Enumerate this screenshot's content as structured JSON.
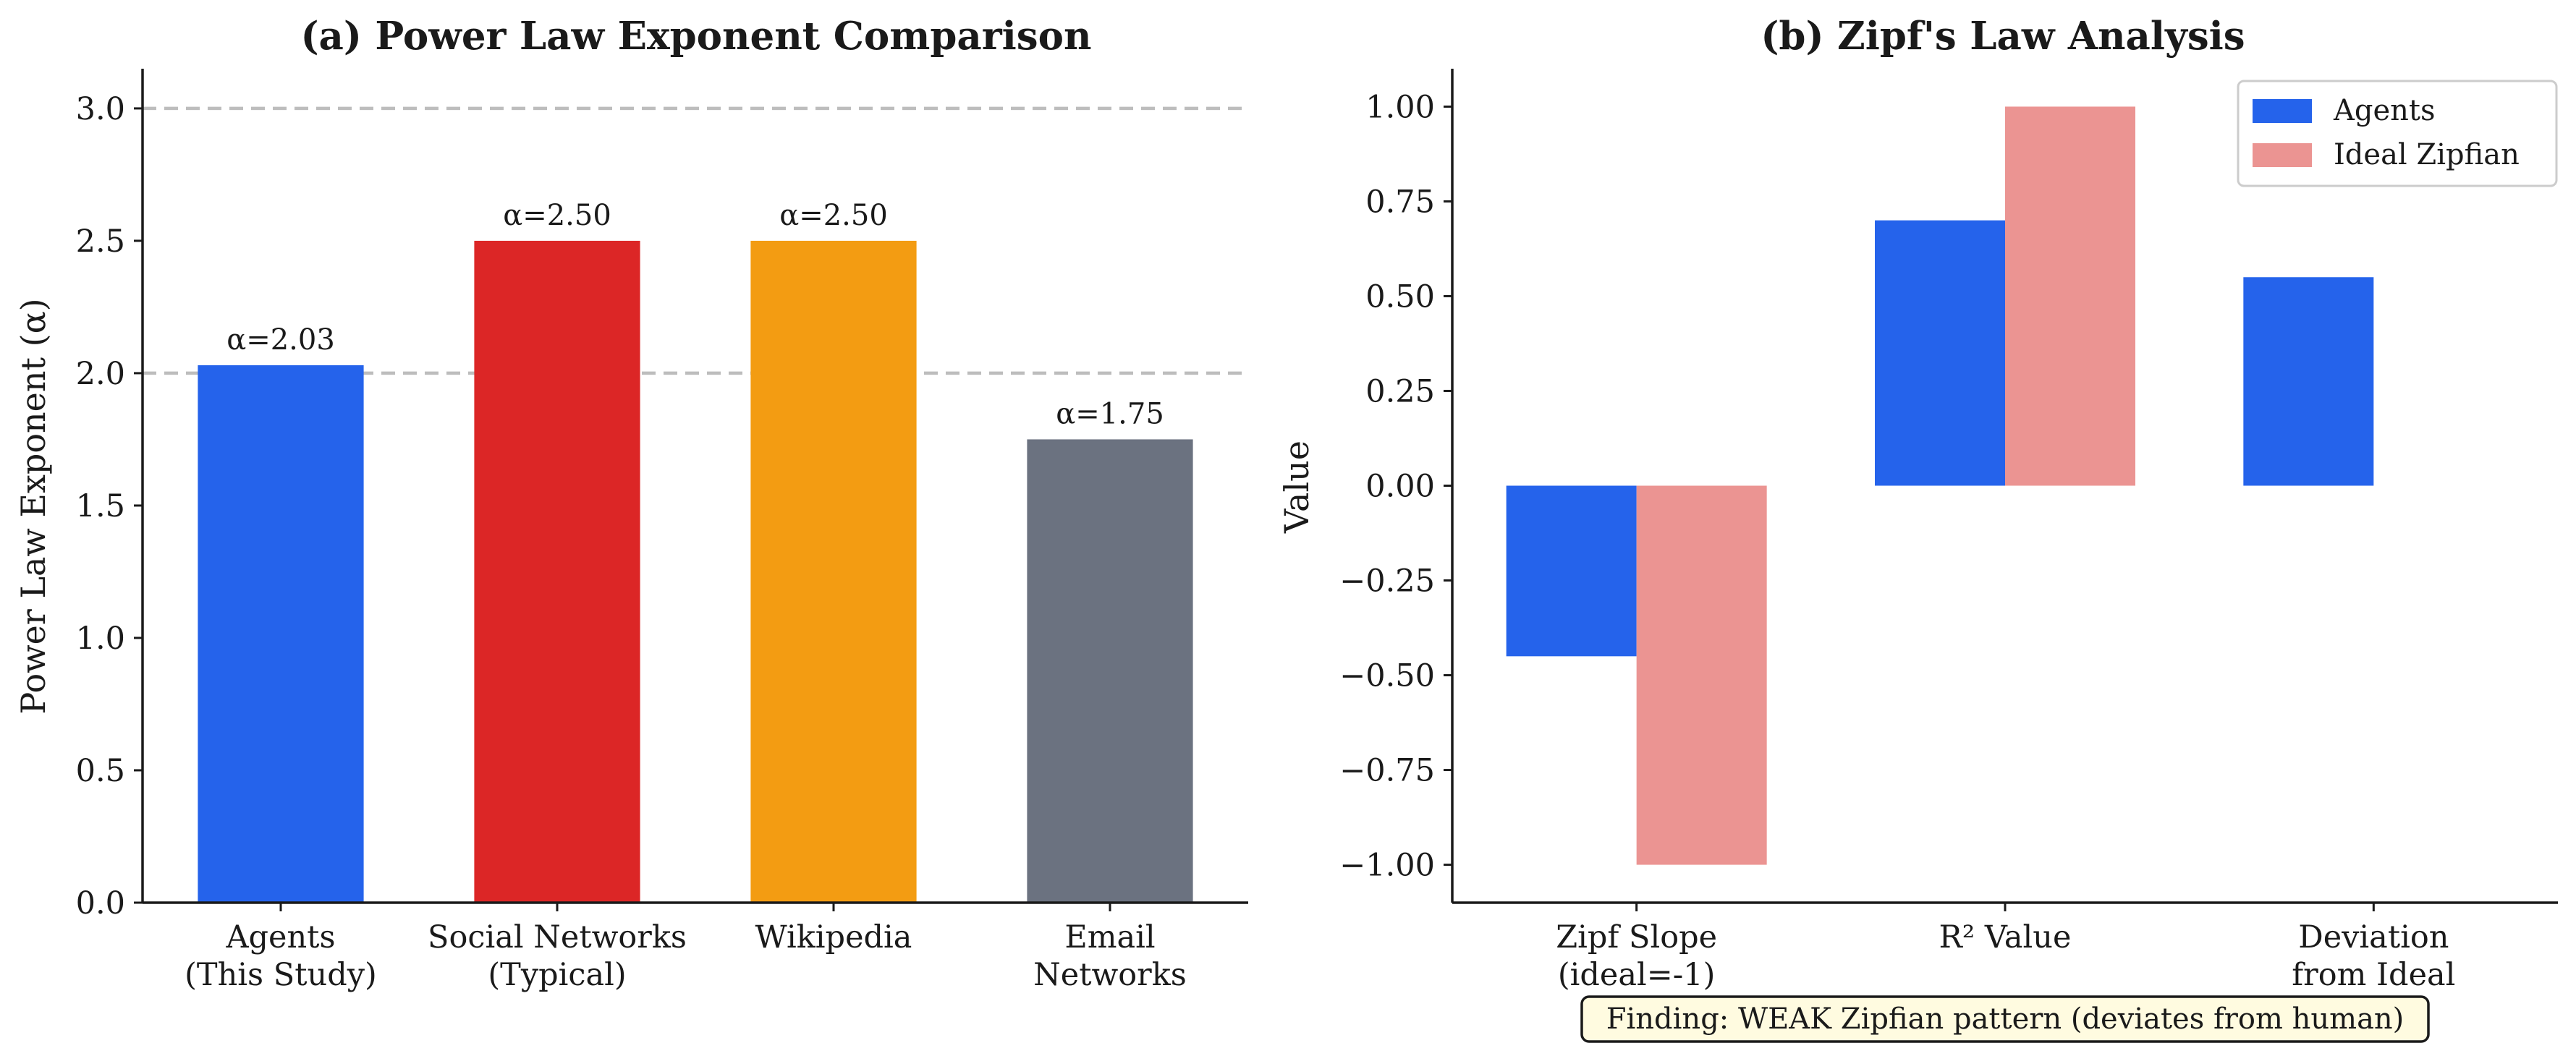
{
  "chart_data": [
    {
      "type": "bar",
      "title": "(a) Power Law Exponent Comparison",
      "xlabel": "",
      "ylabel": "Power Law Exponent (α)",
      "ylim": [
        0,
        3.15
      ],
      "yticks": [
        "0.0",
        "0.5",
        "1.0",
        "1.5",
        "2.0",
        "2.5",
        "3.0"
      ],
      "reference_lines": [
        2.0,
        3.0
      ],
      "grid": false,
      "categories": [
        [
          "Agents",
          "(This Study)"
        ],
        [
          "Social Networks",
          "(Typical)"
        ],
        [
          "Wikipedia"
        ],
        [
          "Email",
          "Networks"
        ]
      ],
      "values": [
        2.03,
        2.5,
        2.5,
        1.75
      ],
      "labels": [
        "α=2.03",
        "α=2.50",
        "α=2.50",
        "α=1.75"
      ],
      "colors": [
        "#2563eb",
        "#dc2626",
        "#f39c12",
        "#6b7280"
      ]
    },
    {
      "type": "bar",
      "title": "(b) Zipf's Law Analysis",
      "xlabel": "",
      "ylabel": "Value",
      "ylim": [
        -1.1,
        1.1
      ],
      "yticks": [
        "−1.00",
        "−0.75",
        "−0.50",
        "−0.25",
        "0.00",
        "0.25",
        "0.50",
        "0.75",
        "1.00"
      ],
      "legend_position": "top-right",
      "categories": [
        [
          "Zipf Slope",
          "(ideal=-1)"
        ],
        [
          "R² Value"
        ],
        [
          "Deviation",
          "from Ideal"
        ]
      ],
      "series": [
        {
          "name": "Agents",
          "color": "#2563eb",
          "values": [
            -0.45,
            0.7,
            0.55
          ]
        },
        {
          "name": "Ideal Zipfian",
          "color": "#eb9492",
          "values": [
            -1.0,
            1.0,
            null
          ]
        }
      ],
      "annotation": "Finding: WEAK Zipfian pattern (deviates from human)"
    }
  ]
}
